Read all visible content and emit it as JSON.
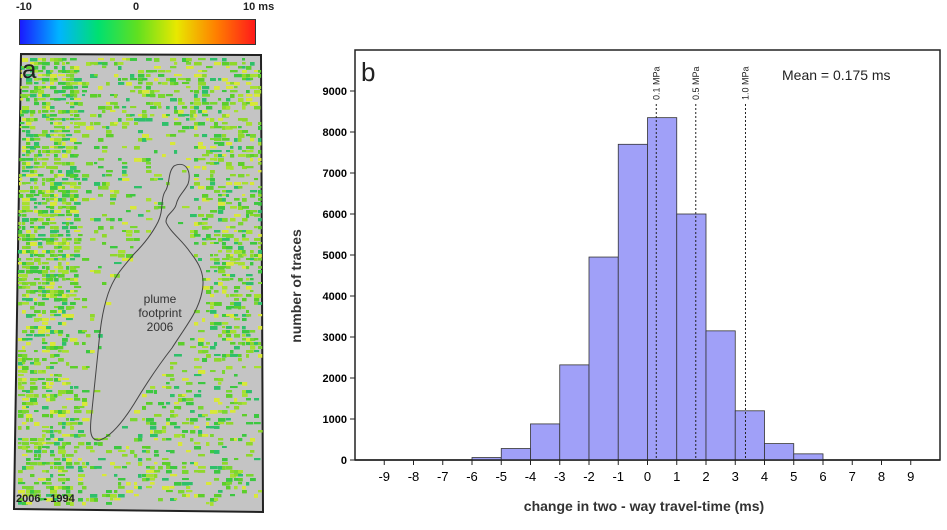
{
  "colorbar": {
    "min_label": "-10",
    "mid_label": "0",
    "max_label": "10 ms",
    "colors": [
      "#1a1aff",
      "#00b4ff",
      "#00e070",
      "#60e020",
      "#e8e800",
      "#ff8000",
      "#ff1a1a"
    ]
  },
  "map_panel": {
    "letter": "a",
    "plume_label": "plume footprint 2006",
    "caption": "2006 - 1994",
    "background": "#c4c4c4"
  },
  "chart_panel": {
    "letter": "b",
    "mean_text": "Mean =  0.175 ms"
  },
  "chart_data": {
    "type": "bar",
    "bin_edges": [
      -6,
      -5,
      -4,
      -3,
      -2,
      -1,
      0,
      1,
      2,
      3,
      4,
      5,
      6
    ],
    "values": [
      60,
      280,
      880,
      2320,
      4950,
      7700,
      8350,
      6000,
      3150,
      1200,
      400,
      150
    ],
    "xlabel": "change in two - way travel-time (ms)",
    "ylabel": "number of traces",
    "xticks": [
      -9,
      -8,
      -7,
      -6,
      -5,
      -4,
      -3,
      -2,
      -1,
      0,
      1,
      2,
      3,
      4,
      5,
      6,
      7,
      8,
      9
    ],
    "yticks": [
      0,
      1000,
      2000,
      3000,
      4000,
      5000,
      6000,
      7000,
      8000,
      9000
    ],
    "xlim": [
      -10,
      10
    ],
    "ylim": [
      0,
      10000
    ],
    "bar_color": "#a0a0f8",
    "annotations": [
      {
        "x": 0.3,
        "label": "0.1 MPa"
      },
      {
        "x": 1.65,
        "label": "0.5 MPa"
      },
      {
        "x": 3.35,
        "label": "1.0 MPa"
      }
    ],
    "mean": 0.175
  }
}
